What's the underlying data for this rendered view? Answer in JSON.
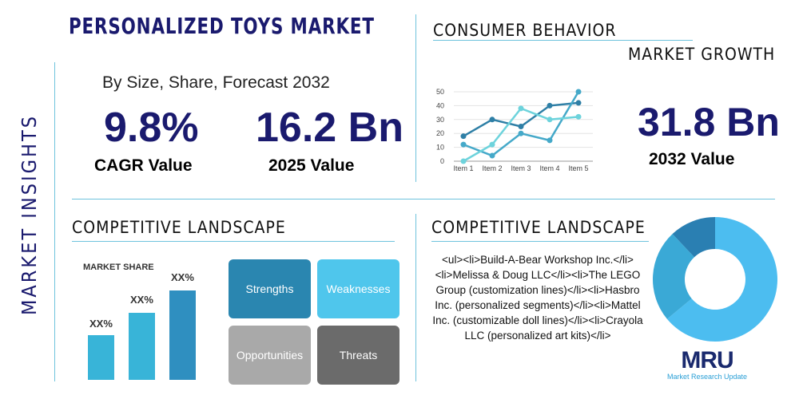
{
  "side_label": "MARKET INSIGHTS",
  "title": "PERSONALIZED TOYS MARKET",
  "subtitle": "By Size, Share, Forecast 2032",
  "cagr": {
    "value": "9.8%",
    "label": "CAGR Value"
  },
  "y2025": {
    "value": "16.2 Bn",
    "label": "2025 Value"
  },
  "consumer_title": "CONSUMER BEHAVIOR",
  "growth_title": "MARKET GROWTH",
  "y2032": {
    "value": "31.8 Bn",
    "label": "2032 Value"
  },
  "chart_data": {
    "type": "line",
    "categories": [
      "Item 1",
      "Item 2",
      "Item 3",
      "Item 4",
      "Item 5"
    ],
    "yticks": [
      0,
      10,
      20,
      30,
      40,
      50
    ],
    "ylim": [
      0,
      50
    ],
    "grid": true,
    "series": [
      {
        "color": "#2e7fa6",
        "values": [
          18,
          30,
          25,
          40,
          42
        ]
      },
      {
        "color": "#45a9c9",
        "values": [
          12,
          4,
          20,
          15,
          50
        ]
      },
      {
        "color": "#6dd3dc",
        "values": [
          0,
          12,
          38,
          30,
          32
        ]
      }
    ]
  },
  "left_landscape": {
    "title": "COMPETITIVE LANDSCAPE",
    "market_share": "MARKET SHARE",
    "bars": [
      {
        "label": "XX%",
        "value": 1
      },
      {
        "label": "XX%",
        "value": 1.5
      },
      {
        "label": "XX%",
        "value": 2
      }
    ]
  },
  "swot": [
    {
      "label": "Strengths",
      "color": "#2a86b0"
    },
    {
      "label": "Weaknesses",
      "color": "#4fc6ec"
    },
    {
      "label": "Opportunities",
      "color": "#a9a9a9"
    },
    {
      "label": "Threats",
      "color": "#6b6b6b"
    }
  ],
  "right_landscape": {
    "title": "COMPETITIVE LANDSCAPE",
    "text": "<ul><li>Build-A-Bear Workshop Inc.</li><li>Melissa & Doug LLC</li><li>The LEGO Group (customization lines)</li><li>Hasbro Inc. (personalized segments)</li><li>Mattel Inc. (customizable doll lines)</li><li>Crayola LLC (personalized art kits)</li>"
  },
  "donut": [
    {
      "value": 64,
      "color": "#4cbdf0"
    },
    {
      "value": 24,
      "color": "#3aa9d6"
    },
    {
      "value": 12,
      "color": "#2a7fb2"
    }
  ],
  "logo": {
    "mark": "MRU",
    "text": "Market Research Update"
  }
}
